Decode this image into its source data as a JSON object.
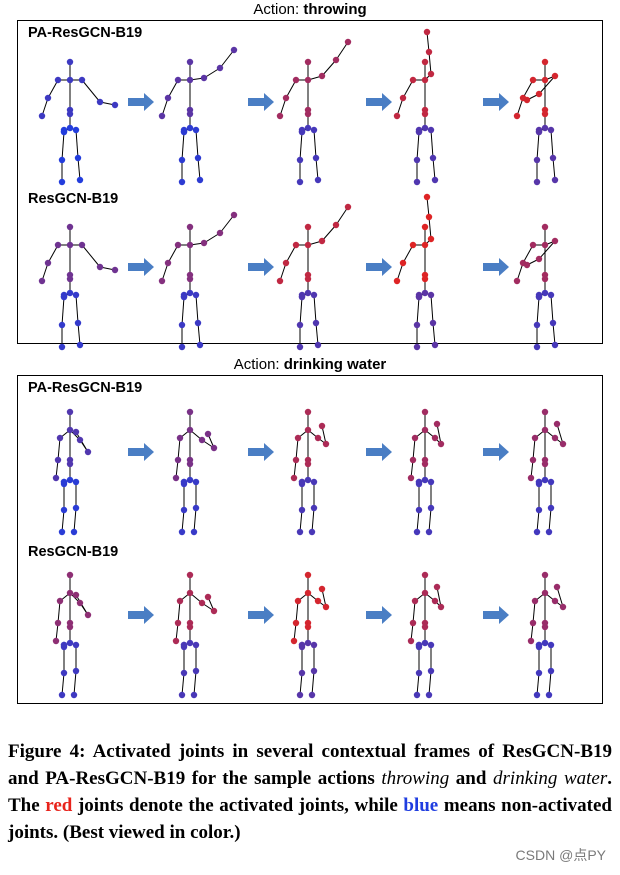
{
  "panels": [
    {
      "title_prefix": "Action: ",
      "title_action": "throwing",
      "rows": [
        {
          "label": "PA-ResGCN-B19"
        },
        {
          "label": "ResGCN-B19"
        }
      ]
    },
    {
      "title_prefix": "Action: ",
      "title_action": "drinking water",
      "rows": [
        {
          "label": "PA-ResGCN-B19"
        },
        {
          "label": "ResGCN-B19"
        }
      ]
    }
  ],
  "caption": {
    "p1": "Figure 4: Activated joints in several contextual frames of ResGCN-B19 and PA-ResGCN-B19 for the sample actions ",
    "action1": "throwing",
    "p2": " and ",
    "action2": "drinking water",
    "p3": ". The ",
    "red_word": "red",
    "p4": " joints denote the activated joints, while ",
    "blue_word": "blue",
    "p5": " means non-activated joints. (Best viewed in color.)"
  },
  "watermark": "CSDN @点PY",
  "colors": {
    "activated": "#e8231b",
    "non_activated": "#1f3de0",
    "arrow": "#4a7ec4"
  }
}
